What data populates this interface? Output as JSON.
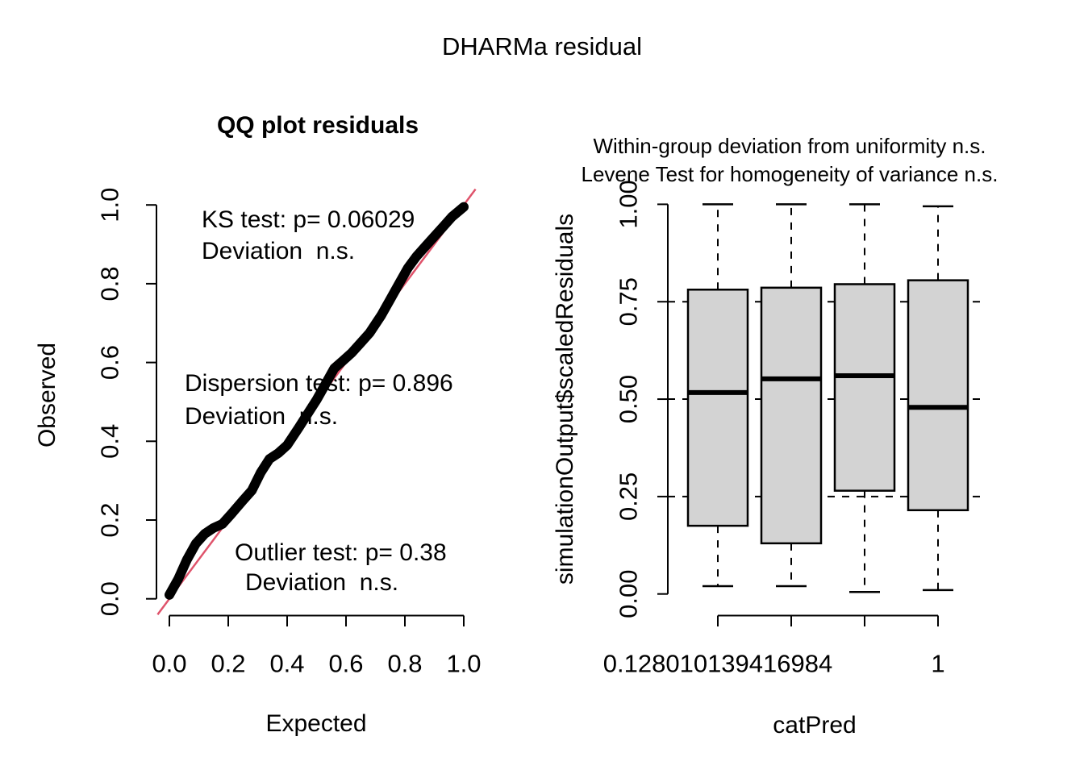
{
  "main_title": "DHARMa residual",
  "chart_data": [
    {
      "type": "scatter",
      "name": "qq-plot-residuals",
      "title": "QQ plot residuals",
      "xlabel": "Expected",
      "ylabel": "Observed",
      "xlim": [
        0,
        1
      ],
      "ylim": [
        0,
        1
      ],
      "grid": false,
      "x_ticks": {
        "values": [
          0,
          0.2,
          0.4,
          0.6,
          0.8,
          1.0
        ],
        "labels": [
          "0.0",
          "0.2",
          "0.4",
          "0.6",
          "0.8",
          "1.0"
        ]
      },
      "y_ticks": {
        "values": [
          0,
          0.2,
          0.4,
          0.6,
          0.8,
          1.0
        ],
        "labels": [
          "0.0",
          "0.2",
          "0.4",
          "0.6",
          "0.8",
          "1.0"
        ]
      },
      "reference_line": {
        "intercept": 0,
        "slope": 1,
        "color": "#DF536B"
      },
      "point_color": "#000000",
      "qq_curve": {
        "expected": [
          0.0,
          0.03,
          0.06,
          0.09,
          0.12,
          0.15,
          0.18,
          0.21,
          0.25,
          0.28,
          0.31,
          0.34,
          0.37,
          0.4,
          0.44,
          0.47,
          0.5,
          0.53,
          0.56,
          0.59,
          0.62,
          0.65,
          0.68,
          0.72,
          0.75,
          0.78,
          0.81,
          0.84,
          0.87,
          0.9,
          0.93,
          0.96,
          1.0
        ],
        "observed": [
          0.01,
          0.05,
          0.1,
          0.14,
          0.165,
          0.18,
          0.19,
          0.215,
          0.25,
          0.275,
          0.32,
          0.355,
          0.37,
          0.39,
          0.435,
          0.47,
          0.505,
          0.545,
          0.585,
          0.605,
          0.625,
          0.65,
          0.675,
          0.72,
          0.76,
          0.8,
          0.84,
          0.87,
          0.895,
          0.92,
          0.945,
          0.97,
          0.995
        ]
      },
      "tests": [
        {
          "name": "KS test",
          "p": 0.06029,
          "label": "KS test: p= 0.06029",
          "deviation": "Deviation  n.s."
        },
        {
          "name": "Dispersion test",
          "p": 0.896,
          "label": "Dispersion test: p= 0.896",
          "deviation": "Deviation  n.s."
        },
        {
          "name": "Outlier test",
          "p": 0.38,
          "label": "Outlier test: p= 0.38",
          "deviation": "Deviation  n.s."
        }
      ]
    },
    {
      "type": "boxplot",
      "name": "residuals-vs-catpred",
      "title_line1": "Within-group deviation from uniformity n.s.",
      "title_line2": "Levene Test for homogeneity of variance n.s.",
      "xlabel": "catPred",
      "ylabel": "simulationOutput$scaledResiduals",
      "ylim": [
        0,
        1
      ],
      "y_ticks": {
        "values": [
          0,
          0.25,
          0.5,
          0.75,
          1.0
        ],
        "labels": [
          "0.00",
          "0.25",
          "0.50",
          "0.75",
          "1.00"
        ]
      },
      "group_labels": [
        "0.128010139416984",
        "",
        "",
        "1"
      ],
      "reference_lines": {
        "values": [
          0.25,
          0.5,
          0.75
        ],
        "style": "dashed",
        "color": "#000000"
      },
      "box_fill": "#D3D3D3",
      "box_border": "#000000",
      "boxes": [
        {
          "whisker_low": 0.02,
          "q1": 0.175,
          "median": 0.517,
          "q3": 0.781,
          "whisker_high": 1.0
        },
        {
          "whisker_low": 0.02,
          "q1": 0.13,
          "median": 0.552,
          "q3": 0.786,
          "whisker_high": 1.0
        },
        {
          "whisker_low": 0.005,
          "q1": 0.265,
          "median": 0.56,
          "q3": 0.795,
          "whisker_high": 1.0
        },
        {
          "whisker_low": 0.01,
          "q1": 0.215,
          "median": 0.479,
          "q3": 0.805,
          "whisker_high": 0.995
        }
      ]
    }
  ]
}
